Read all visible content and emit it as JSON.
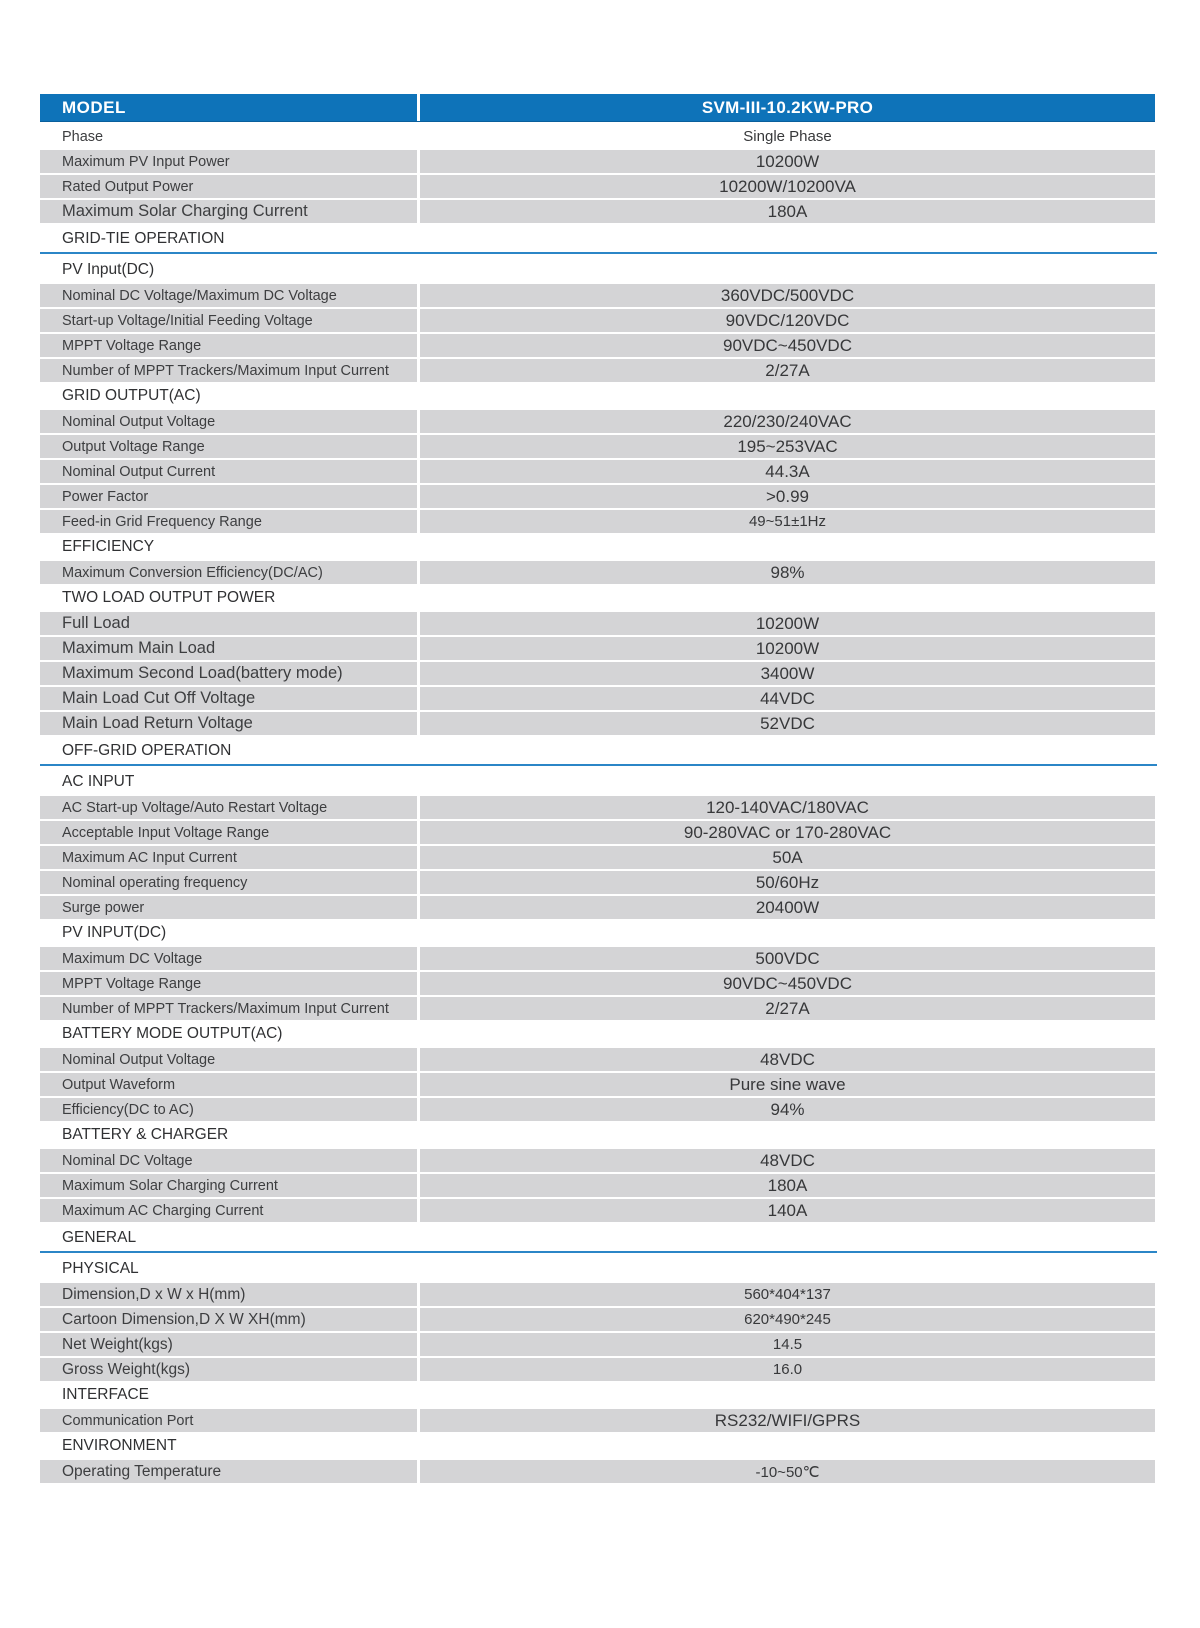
{
  "table": {
    "header": {
      "label": "MODEL",
      "value": "SVM-III-10.2KW-PRO"
    },
    "accent_color": "#0e73b9",
    "row_color": "#d4d4d6",
    "section_line_color": "#2b86c7",
    "blocks": [
      {
        "type": "row",
        "label": "Phase",
        "value": "Single Phase",
        "white": true,
        "vs": "sm"
      },
      {
        "type": "row",
        "label": "Maximum PV Input Power",
        "value": "10200W"
      },
      {
        "type": "row",
        "label": "Rated Output Power",
        "value": "10200W/10200VA"
      },
      {
        "type": "row",
        "label": "Maximum Solar Charging Current",
        "value": "180A",
        "ls": "lg"
      },
      {
        "type": "section",
        "label": "GRID-TIE OPERATION",
        "line": true
      },
      {
        "type": "section",
        "label": "PV Input(DC)"
      },
      {
        "type": "row",
        "label": "Nominal DC Voltage/Maximum DC Voltage",
        "value": "360VDC/500VDC"
      },
      {
        "type": "row",
        "label": "Start-up Voltage/Initial Feeding Voltage",
        "value": "90VDC/120VDC"
      },
      {
        "type": "row",
        "label": "MPPT Voltage Range",
        "value": "90VDC~450VDC"
      },
      {
        "type": "row",
        "label": "Number of MPPT Trackers/Maximum Input Current",
        "value": "2/27A"
      },
      {
        "type": "section",
        "label": "GRID OUTPUT(AC)"
      },
      {
        "type": "row",
        "label": "Nominal Output Voltage",
        "value": "220/230/240VAC"
      },
      {
        "type": "row",
        "label": "Output Voltage Range",
        "value": "195~253VAC"
      },
      {
        "type": "row",
        "label": "Nominal Output Current",
        "value": "44.3A"
      },
      {
        "type": "row",
        "label": "Power Factor",
        "value": ">0.99"
      },
      {
        "type": "row",
        "label": "Feed-in Grid Frequency Range",
        "value": "49~51±1Hz",
        "vs": "sm"
      },
      {
        "type": "section",
        "label": "EFFICIENCY"
      },
      {
        "type": "row",
        "label": "Maximum Conversion Efficiency(DC/AC)",
        "value": "98%"
      },
      {
        "type": "section",
        "label": "TWO LOAD OUTPUT POWER"
      },
      {
        "type": "row",
        "label": "Full Load",
        "value": "10200W",
        "ls": "lg"
      },
      {
        "type": "row",
        "label": "Maximum Main Load",
        "value": "10200W",
        "ls": "lg"
      },
      {
        "type": "row",
        "label": "Maximum Second Load(battery mode)",
        "value": "3400W",
        "ls": "lg"
      },
      {
        "type": "row",
        "label": "Main Load Cut Off Voltage",
        "value": "44VDC",
        "ls": "lg"
      },
      {
        "type": "row",
        "label": "Main Load Return Voltage",
        "value": "52VDC",
        "ls": "lg"
      },
      {
        "type": "section",
        "label": "OFF-GRID OPERATION",
        "line": true
      },
      {
        "type": "section",
        "label": "AC INPUT"
      },
      {
        "type": "row",
        "label": "AC Start-up Voltage/Auto Restart Voltage",
        "value": "120-140VAC/180VAC"
      },
      {
        "type": "row",
        "label": "Acceptable Input Voltage Range",
        "value": "90-280VAC or 170-280VAC"
      },
      {
        "type": "row",
        "label": "Maximum AC Input Current",
        "value": "50A"
      },
      {
        "type": "row",
        "label": "Nominal operating frequency",
        "value": "50/60Hz"
      },
      {
        "type": "row",
        "label": "Surge power",
        "value": "20400W"
      },
      {
        "type": "section",
        "label": "PV INPUT(DC)"
      },
      {
        "type": "row",
        "label": "Maximum DC Voltage",
        "value": "500VDC"
      },
      {
        "type": "row",
        "label": "MPPT Voltage Range",
        "value": "90VDC~450VDC"
      },
      {
        "type": "row",
        "label": "Number of MPPT Trackers/Maximum Input Current",
        "value": "2/27A"
      },
      {
        "type": "section",
        "label": "BATTERY MODE OUTPUT(AC)"
      },
      {
        "type": "row",
        "label": "Nominal Output Voltage",
        "value": "48VDC"
      },
      {
        "type": "row",
        "label": "Output Waveform",
        "value": "Pure sine wave"
      },
      {
        "type": "row",
        "label": "Efficiency(DC to AC)",
        "value": "94%"
      },
      {
        "type": "section",
        "label": "BATTERY & CHARGER"
      },
      {
        "type": "row",
        "label": "Nominal DC Voltage",
        "value": "48VDC"
      },
      {
        "type": "row",
        "label": "Maximum Solar Charging Current",
        "value": "180A"
      },
      {
        "type": "row",
        "label": "Maximum AC Charging Current",
        "value": "140A"
      },
      {
        "type": "section",
        "label": "GENERAL",
        "line": true
      },
      {
        "type": "section",
        "label": "PHYSICAL"
      },
      {
        "type": "row",
        "label": "Dimension,D x W x H(mm)",
        "value": "560*404*137",
        "ls": "md",
        "vs": "sm"
      },
      {
        "type": "row",
        "label": "Cartoon Dimension,D X W XH(mm)",
        "value": "620*490*245",
        "ls": "md",
        "vs": "sm"
      },
      {
        "type": "row",
        "label": "Net Weight(kgs)",
        "value": "14.5",
        "ls": "md",
        "vs": "sm"
      },
      {
        "type": "row",
        "label": "Gross Weight(kgs)",
        "value": "16.0",
        "ls": "md",
        "vs": "sm"
      },
      {
        "type": "section",
        "label": "INTERFACE"
      },
      {
        "type": "row",
        "label": "Communication Port",
        "value": "RS232/WIFI/GPRS"
      },
      {
        "type": "section",
        "label": "ENVIRONMENT"
      },
      {
        "type": "row",
        "label": "Operating Temperature",
        "value": "-10~50℃",
        "ls": "md",
        "vs": "sm"
      }
    ]
  }
}
